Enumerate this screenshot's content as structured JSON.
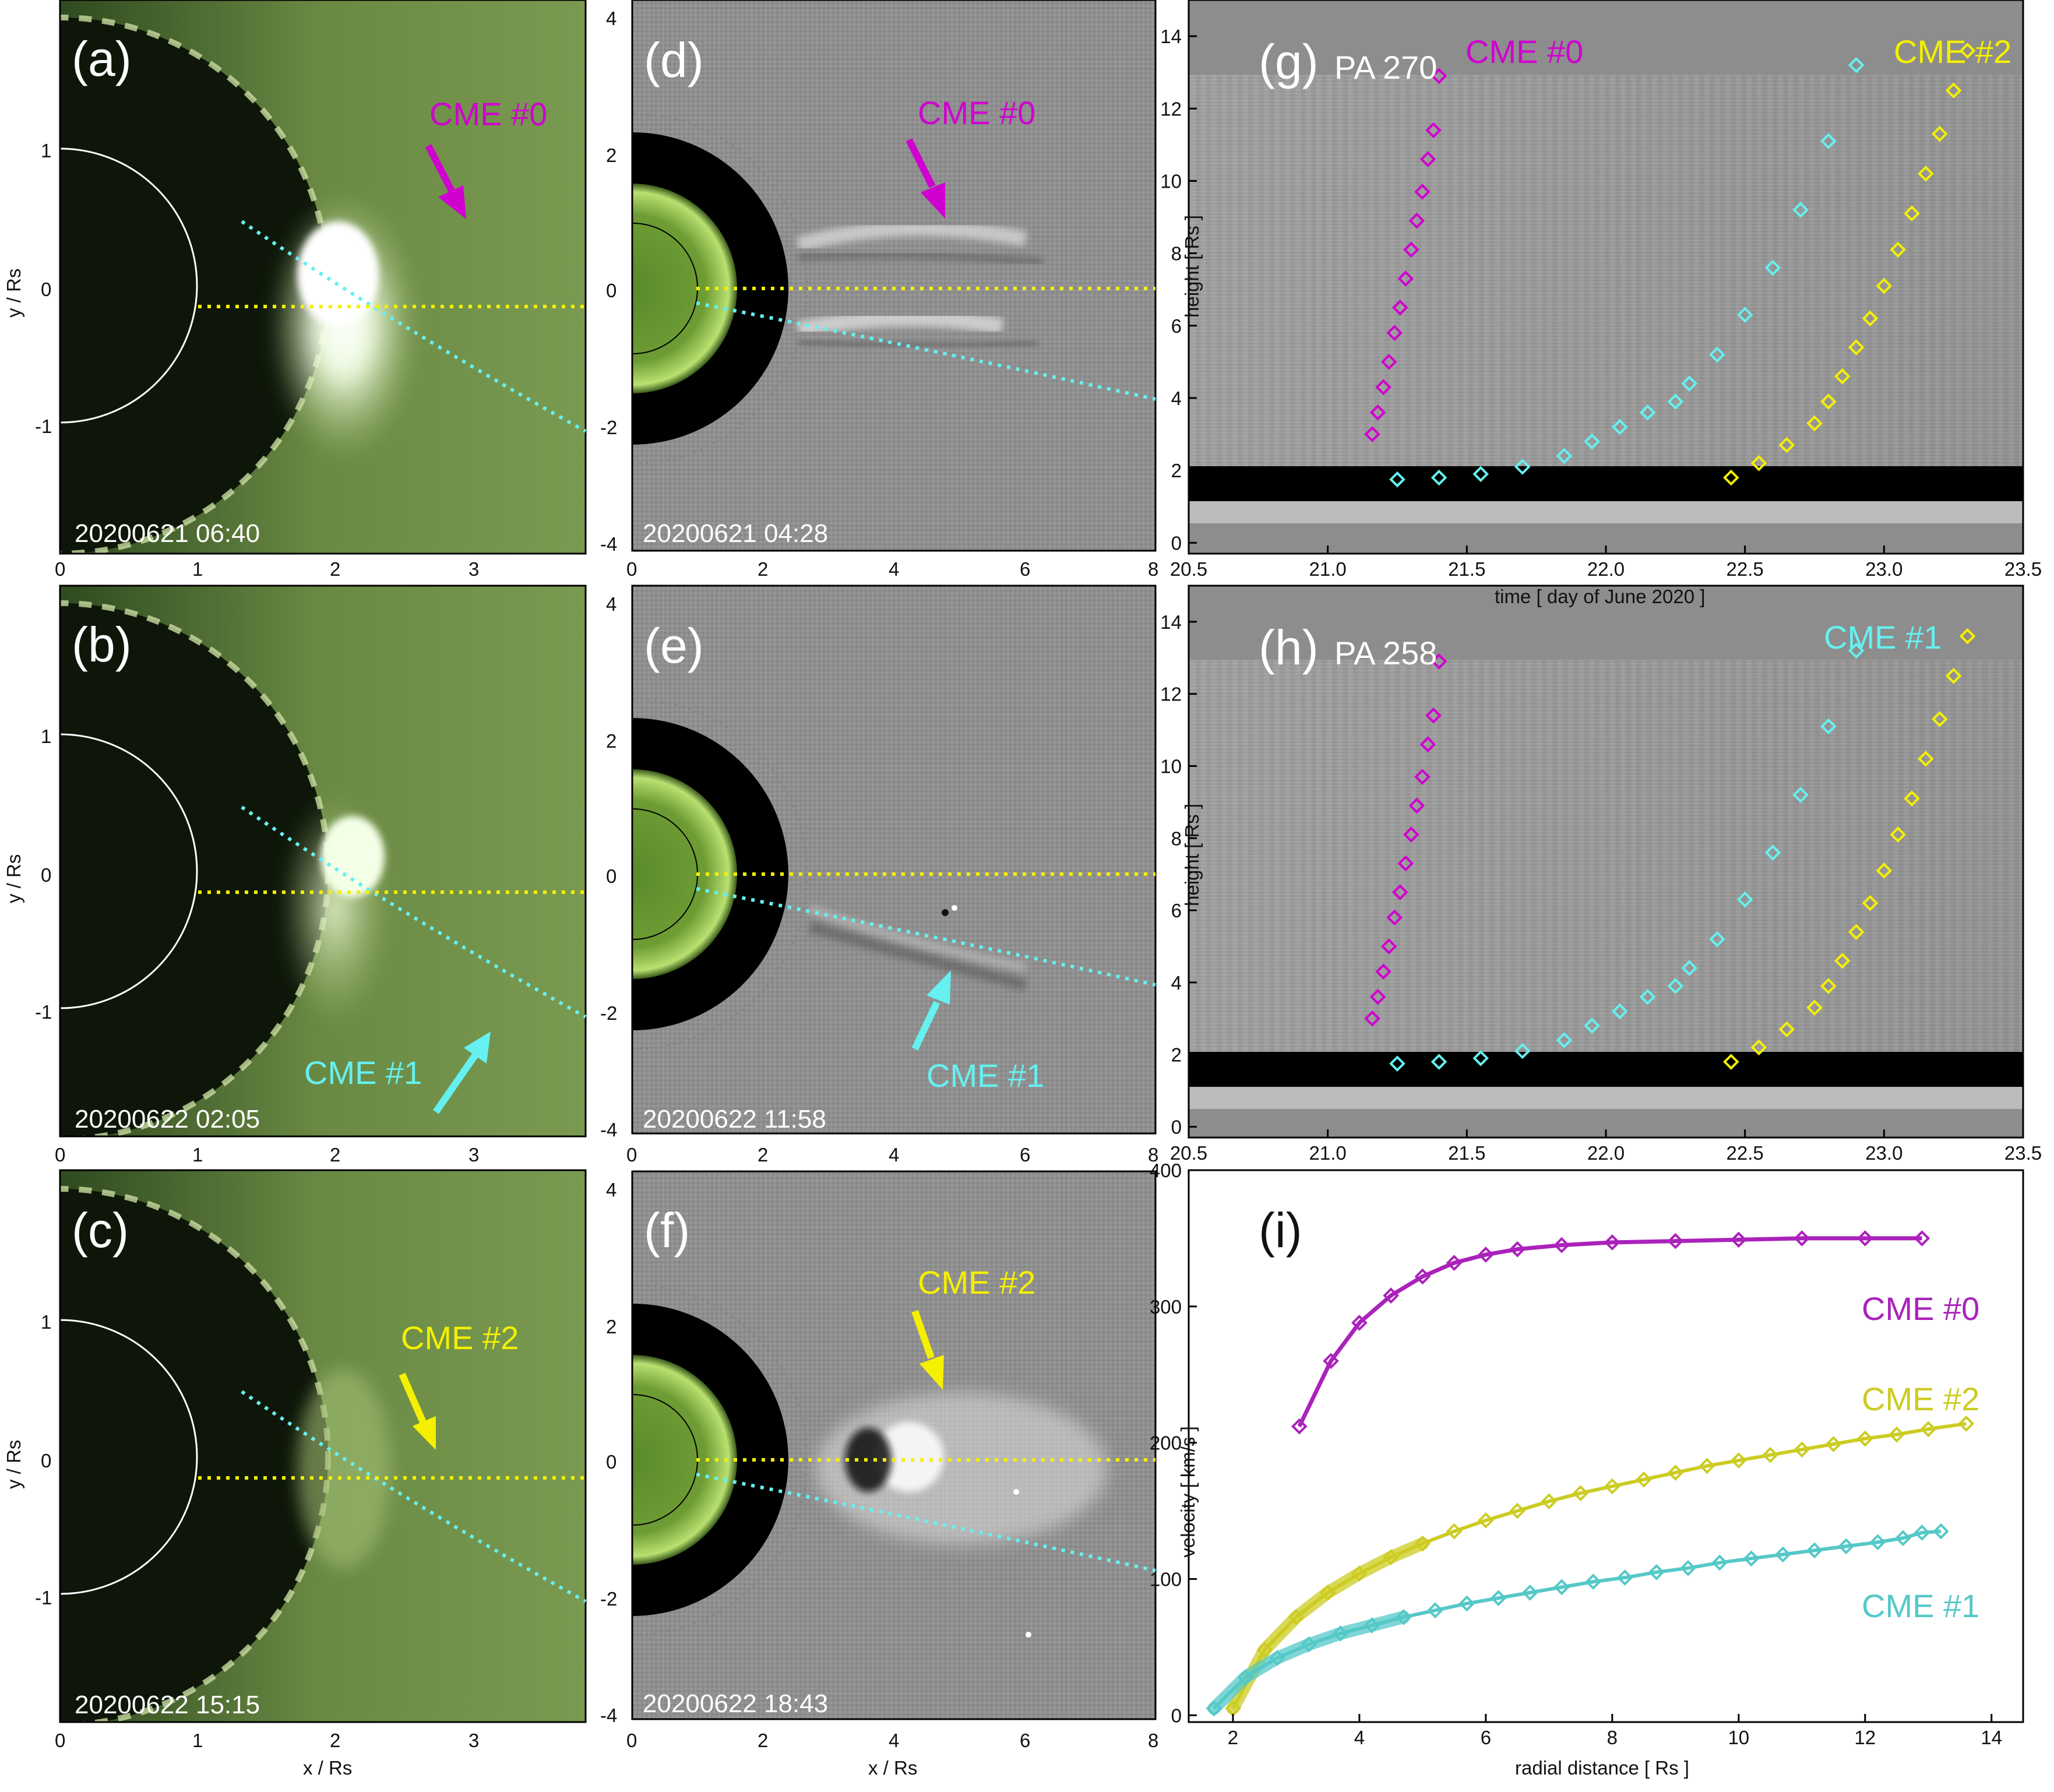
{
  "colors": {
    "magenta": "#d000d0",
    "cyan": "#66f0f0",
    "yellow": "#f4f000",
    "olive": "#cccc22",
    "purple": "#aa22bb",
    "teal": "#55c8c8",
    "green_bg": "#5d7f3c",
    "grey_bg": "#8f8f8f"
  },
  "left_panels": [
    {
      "label": "(a)",
      "timestamp": "20200621 06:40",
      "cme": "CME #0",
      "cme_color": "magenta"
    },
    {
      "label": "(b)",
      "timestamp": "20200622 02:05",
      "cme": "CME #1",
      "cme_color": "cyan"
    },
    {
      "label": "(c)",
      "timestamp": "20200622 15:15",
      "cme": "CME #2",
      "cme_color": "yellow"
    }
  ],
  "left_axes": {
    "xlabel": "x / Rs",
    "ylabel": "y / Rs",
    "xticks": [
      "0",
      "1",
      "2",
      "3"
    ],
    "yticks": [
      "1",
      "0",
      "-1"
    ]
  },
  "mid_panels": [
    {
      "label": "(d)",
      "timestamp": "20200621 04:28",
      "cme": "CME #0",
      "cme_color": "magenta"
    },
    {
      "label": "(e)",
      "timestamp": "20200622 11:58",
      "cme": "CME #1",
      "cme_color": "cyan"
    },
    {
      "label": "(f)",
      "timestamp": "20200622 18:43",
      "cme": "CME #2",
      "cme_color": "yellow"
    }
  ],
  "mid_axes": {
    "xlabel": "x / Rs",
    "xticks": [
      "0",
      "2",
      "4",
      "6",
      "8"
    ],
    "yticks": [
      "4",
      "2",
      "0",
      "-2",
      "-4"
    ]
  },
  "jmaps": [
    {
      "label": "(g)",
      "pa": "PA 270",
      "cmes": [
        {
          "text": "CME #0",
          "color": "magenta"
        },
        {
          "text": "CME #2",
          "color": "yellow"
        }
      ]
    },
    {
      "label": "(h)",
      "pa": "PA 258",
      "cmes": [
        {
          "text": "CME #1",
          "color": "cyan"
        }
      ]
    }
  ],
  "jmap_axes": {
    "xlabel": "time  [ day of June 2020 ]",
    "ylabel": "height  [ Rs ]",
    "xticks": [
      "20.5",
      "21.0",
      "21.5",
      "22.0",
      "22.5",
      "23.0",
      "23.5"
    ],
    "yticks": [
      "0",
      "2",
      "4",
      "6",
      "8",
      "10",
      "12",
      "14"
    ]
  },
  "velocity_panel": {
    "label": "(i)",
    "xlabel": "radial distance  [ Rs ]",
    "ylabel": "velocity  [ km/s ]",
    "xticks": [
      "2",
      "4",
      "6",
      "8",
      "10",
      "12",
      "14"
    ],
    "yticks": [
      "0",
      "100",
      "200",
      "300",
      "400"
    ],
    "legend": [
      {
        "text": "CME #0",
        "color": "purple"
      },
      {
        "text": "CME #2",
        "color": "olive"
      },
      {
        "text": "CME #1",
        "color": "teal"
      }
    ]
  },
  "chart_data": [
    {
      "type": "scatter",
      "title": "(g) PA 270",
      "xlabel": "time  [ day of June 2020 ]",
      "ylabel": "height  [ Rs ]",
      "xlim": [
        20.5,
        23.5
      ],
      "ylim": [
        -0.3,
        15
      ],
      "series": [
        {
          "name": "CME #0",
          "color": "magenta",
          "x": [
            21.16,
            21.18,
            21.2,
            21.22,
            21.24,
            21.26,
            21.28,
            21.3,
            21.32,
            21.34,
            21.36,
            21.38,
            21.4
          ],
          "y": [
            3.0,
            3.6,
            4.3,
            5.0,
            5.8,
            6.5,
            7.3,
            8.1,
            8.9,
            9.7,
            10.6,
            11.4,
            12.9
          ]
        },
        {
          "name": "CME #1",
          "color": "cyan",
          "x": [
            21.25,
            21.4,
            21.55,
            21.7,
            21.85,
            21.95,
            22.05,
            22.15,
            22.25,
            22.3,
            22.4,
            22.5,
            22.6,
            22.7,
            22.8,
            22.9
          ],
          "y": [
            1.75,
            1.8,
            1.9,
            2.1,
            2.4,
            2.8,
            3.2,
            3.6,
            3.9,
            4.4,
            5.2,
            6.3,
            7.6,
            9.2,
            11.1,
            13.2
          ]
        },
        {
          "name": "CME #2",
          "color": "yellow",
          "x": [
            22.45,
            22.55,
            22.65,
            22.75,
            22.8,
            22.85,
            22.9,
            22.95,
            23.0,
            23.05,
            23.1,
            23.15,
            23.2,
            23.25,
            23.3
          ],
          "y": [
            1.8,
            2.2,
            2.7,
            3.3,
            3.9,
            4.6,
            5.4,
            6.2,
            7.1,
            8.1,
            9.1,
            10.2,
            11.3,
            12.5,
            13.6
          ]
        }
      ]
    },
    {
      "type": "scatter",
      "title": "(h) PA 258",
      "xlabel": "time  [ day of June 2020 ]",
      "ylabel": "height  [ Rs ]",
      "xlim": [
        20.5,
        23.5
      ],
      "ylim": [
        -0.3,
        15
      ],
      "series": [
        {
          "name": "CME #0",
          "color": "magenta",
          "x": [
            21.16,
            21.18,
            21.2,
            21.22,
            21.24,
            21.26,
            21.28,
            21.3,
            21.32,
            21.34,
            21.36,
            21.38,
            21.4
          ],
          "y": [
            3.0,
            3.6,
            4.3,
            5.0,
            5.8,
            6.5,
            7.3,
            8.1,
            8.9,
            9.7,
            10.6,
            11.4,
            12.9
          ]
        },
        {
          "name": "CME #1",
          "color": "cyan",
          "x": [
            21.25,
            21.4,
            21.55,
            21.7,
            21.85,
            21.95,
            22.05,
            22.15,
            22.25,
            22.3,
            22.4,
            22.5,
            22.6,
            22.7,
            22.8,
            22.9
          ],
          "y": [
            1.75,
            1.8,
            1.9,
            2.1,
            2.4,
            2.8,
            3.2,
            3.6,
            3.9,
            4.4,
            5.2,
            6.3,
            7.6,
            9.2,
            11.1,
            13.2
          ]
        },
        {
          "name": "CME #2",
          "color": "yellow",
          "x": [
            22.45,
            22.55,
            22.65,
            22.75,
            22.8,
            22.85,
            22.9,
            22.95,
            23.0,
            23.05,
            23.1,
            23.15,
            23.2,
            23.25,
            23.3
          ],
          "y": [
            1.8,
            2.2,
            2.7,
            3.3,
            3.9,
            4.6,
            5.4,
            6.2,
            7.1,
            8.1,
            9.1,
            10.2,
            11.3,
            12.5,
            13.6
          ]
        }
      ]
    },
    {
      "type": "line",
      "title": "(i)",
      "xlabel": "radial distance  [ Rs ]",
      "ylabel": "velocity  [ km/s ]",
      "xlim": [
        1.3,
        14.5
      ],
      "ylim": [
        -5,
        400
      ],
      "series": [
        {
          "name": "CME #0",
          "color": "purple",
          "x": [
            3.05,
            3.55,
            4.0,
            4.5,
            5.0,
            5.5,
            6.0,
            6.5,
            7.2,
            8.0,
            9.0,
            10.0,
            11.0,
            12.0,
            12.9
          ],
          "y": [
            212,
            260,
            288,
            308,
            322,
            332,
            338,
            342,
            345,
            347,
            348,
            349,
            350,
            350,
            350
          ]
        },
        {
          "name": "CME #2",
          "color": "olive",
          "x": [
            2.0,
            2.5,
            3.0,
            3.5,
            4.0,
            4.5,
            5.0,
            5.5,
            6.0,
            6.5,
            7.0,
            7.5,
            8.0,
            8.5,
            9.0,
            9.5,
            10.0,
            10.5,
            11.0,
            11.5,
            12.0,
            12.5,
            13.0,
            13.6
          ],
          "y": [
            5,
            48,
            72,
            90,
            104,
            116,
            126,
            135,
            143,
            150,
            157,
            163,
            168,
            173,
            178,
            183,
            187,
            191,
            195,
            199,
            203,
            206,
            210,
            214
          ]
        },
        {
          "name": "CME #1",
          "color": "teal",
          "x": [
            1.7,
            2.2,
            2.7,
            3.2,
            3.7,
            4.2,
            4.7,
            5.2,
            5.7,
            6.2,
            6.7,
            7.2,
            7.7,
            8.2,
            8.7,
            9.2,
            9.7,
            10.2,
            10.7,
            11.2,
            11.7,
            12.2,
            12.6,
            12.9,
            13.2
          ],
          "y": [
            5,
            28,
            42,
            52,
            60,
            66,
            72,
            77,
            82,
            86,
            90,
            94,
            98,
            101,
            105,
            108,
            112,
            115,
            118,
            121,
            124,
            127,
            130,
            134,
            135
          ]
        }
      ]
    }
  ]
}
